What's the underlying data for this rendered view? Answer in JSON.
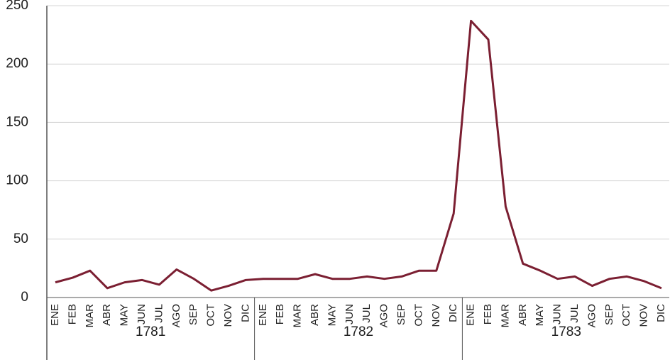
{
  "chart_data": {
    "type": "line",
    "groups": [
      {
        "label": "1781",
        "categories": [
          "ENE",
          "FEB",
          "MAR",
          "ABR",
          "MAY",
          "JUN",
          "JUL",
          "AGO",
          "SEP",
          "OCT",
          "NOV",
          "DIC"
        ]
      },
      {
        "label": "1782",
        "categories": [
          "ENE",
          "FEB",
          "MAR",
          "ABR",
          "MAY",
          "JUN",
          "JUL",
          "AGO",
          "SEP",
          "OCT",
          "NOV",
          "DIC"
        ]
      },
      {
        "label": "1783",
        "categories": [
          "ENE",
          "FEB",
          "MAR",
          "ABR",
          "MAY",
          "JUN",
          "JUL",
          "AGO",
          "SEP",
          "OCT",
          "NOV",
          "DIC"
        ]
      }
    ],
    "values": [
      13,
      17,
      23,
      8,
      13,
      15,
      11,
      24,
      16,
      6,
      10,
      15,
      16,
      16,
      16,
      20,
      16,
      16,
      18,
      16,
      18,
      23,
      23,
      72,
      237,
      221,
      78,
      29,
      23,
      16,
      18,
      10,
      16,
      18,
      14,
      8
    ],
    "color": "#7b1f32",
    "ylim": [
      0,
      250
    ],
    "yticks": [
      0,
      50,
      100,
      150,
      200,
      250
    ],
    "grid": true
  }
}
